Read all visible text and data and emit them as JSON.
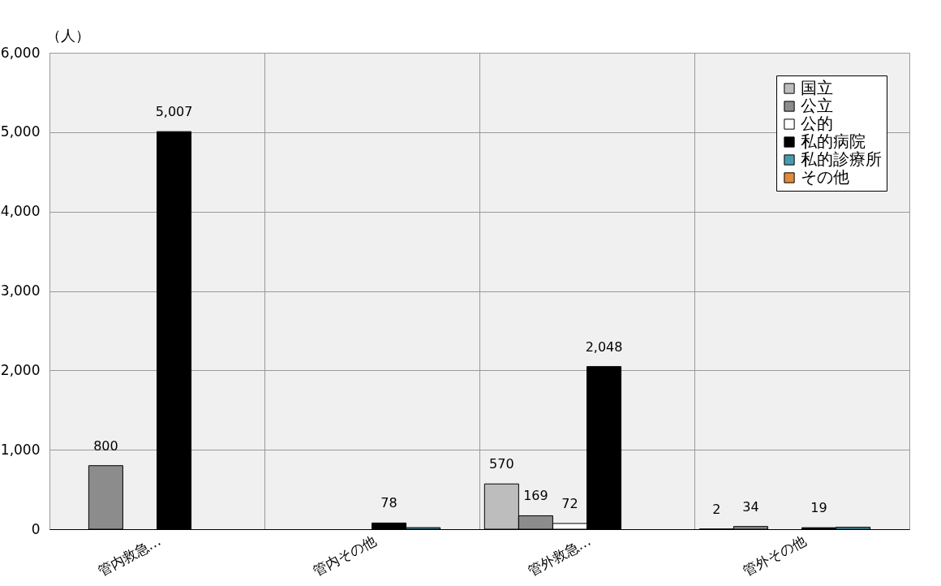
{
  "chart_data": {
    "type": "bar",
    "ylabel": "（人）",
    "categories": [
      "管内救急…",
      "管内その他",
      "管外救急…",
      "管外その他"
    ],
    "series": [
      {
        "name": "国立",
        "color": "#bdbdbd",
        "values": [
          null,
          null,
          570,
          2
        ],
        "value_labels": [
          null,
          null,
          "570",
          "2"
        ]
      },
      {
        "name": "公立",
        "color": "#8c8c8c",
        "values": [
          800,
          null,
          169,
          34
        ],
        "value_labels": [
          "800",
          null,
          "169",
          "34"
        ]
      },
      {
        "name": "公的",
        "color": "#ffffff",
        "values": [
          null,
          null,
          72,
          null
        ],
        "value_labels": [
          null,
          null,
          "72",
          null
        ]
      },
      {
        "name": "私的病院",
        "color": "#000000",
        "values": [
          5007,
          78,
          2048,
          19
        ],
        "value_labels": [
          "5,007",
          "78",
          "2,048",
          "19"
        ]
      },
      {
        "name": "私的診療所",
        "color": "#4a9bb0",
        "values": [
          null,
          20,
          null,
          25
        ],
        "value_labels": [
          null,
          null,
          null,
          null
        ]
      },
      {
        "name": "その他",
        "color": "#e08a3c",
        "values": [
          null,
          null,
          null,
          null
        ],
        "value_labels": [
          null,
          null,
          null,
          null
        ]
      }
    ],
    "ylim": [
      0,
      6000
    ],
    "yticks": [
      {
        "value": 0,
        "label": "0"
      },
      {
        "value": 1000,
        "label": "1,000"
      },
      {
        "value": 2000,
        "label": "2,000"
      },
      {
        "value": 3000,
        "label": "3,000"
      },
      {
        "value": 4000,
        "label": "4,000"
      },
      {
        "value": 5000,
        "label": "5,000"
      },
      {
        "value": 6000,
        "label": "6,000"
      }
    ],
    "grid": true,
    "legend": "top right"
  }
}
